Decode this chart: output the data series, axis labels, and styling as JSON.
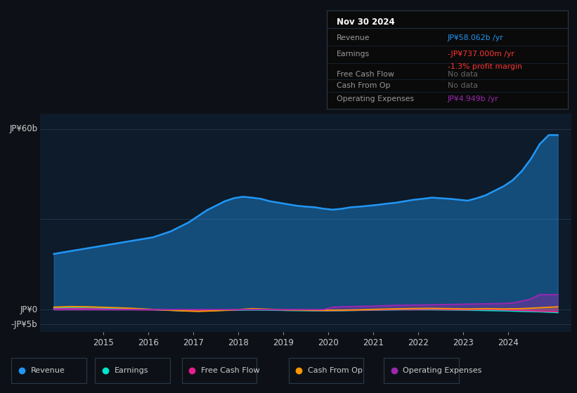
{
  "bg_color": "#0d1117",
  "plot_bg_color": "#0d1b2a",
  "grid_color": "#253a52",
  "text_color": "#cccccc",
  "title_color": "#ffffff",
  "xlim_start": 2013.6,
  "xlim_end": 2025.4,
  "ylim_min": -7500000000,
  "ylim_max": 65000000000,
  "x_ticks": [
    2015,
    2016,
    2017,
    2018,
    2019,
    2020,
    2021,
    2022,
    2023,
    2024
  ],
  "revenue_color": "#2196f3",
  "earnings_color": "#00e5cc",
  "fcf_color": "#e91e8c",
  "cashfromop_color": "#ff9800",
  "opex_color": "#9c27b0",
  "revenue_x": [
    2013.9,
    2014.1,
    2014.3,
    2014.5,
    2014.7,
    2014.9,
    2015.1,
    2015.3,
    2015.5,
    2015.7,
    2015.9,
    2016.1,
    2016.3,
    2016.5,
    2016.7,
    2016.9,
    2017.1,
    2017.3,
    2017.5,
    2017.7,
    2017.9,
    2018.1,
    2018.3,
    2018.5,
    2018.7,
    2018.9,
    2019.1,
    2019.3,
    2019.5,
    2019.7,
    2019.9,
    2020.1,
    2020.3,
    2020.5,
    2020.7,
    2020.9,
    2021.1,
    2021.3,
    2021.5,
    2021.7,
    2021.9,
    2022.1,
    2022.3,
    2022.5,
    2022.7,
    2022.9,
    2023.1,
    2023.3,
    2023.5,
    2023.7,
    2023.9,
    2024.1,
    2024.3,
    2024.5,
    2024.7,
    2024.9,
    2025.1
  ],
  "revenue_y": [
    18500000000.0,
    19000000000.0,
    19500000000.0,
    20000000000.0,
    20500000000.0,
    21000000000.0,
    21500000000.0,
    22000000000.0,
    22500000000.0,
    23000000000.0,
    23500000000.0,
    24000000000.0,
    25000000000.0,
    26000000000.0,
    27500000000.0,
    29000000000.0,
    31000000000.0,
    33000000000.0,
    34500000000.0,
    36000000000.0,
    37000000000.0,
    37500000000.0,
    37200000000.0,
    36800000000.0,
    36000000000.0,
    35500000000.0,
    35000000000.0,
    34500000000.0,
    34200000000.0,
    34000000000.0,
    33500000000.0,
    33200000000.0,
    33500000000.0,
    34000000000.0,
    34200000000.0,
    34500000000.0,
    34800000000.0,
    35200000000.0,
    35500000000.0,
    36000000000.0,
    36500000000.0,
    36800000000.0,
    37200000000.0,
    37000000000.0,
    36800000000.0,
    36500000000.0,
    36200000000.0,
    37000000000.0,
    38000000000.0,
    39500000000.0,
    41000000000.0,
    43000000000.0,
    46000000000.0,
    50000000000.0,
    55000000000.0,
    58000000000.0,
    58000000000.0
  ],
  "earnings_x": [
    2013.9,
    2014.3,
    2014.7,
    2015.1,
    2015.5,
    2015.9,
    2016.3,
    2016.7,
    2017.1,
    2017.5,
    2017.9,
    2018.3,
    2018.7,
    2019.1,
    2019.5,
    2019.9,
    2020.3,
    2020.7,
    2021.1,
    2021.5,
    2021.9,
    2022.3,
    2022.7,
    2023.1,
    2023.5,
    2023.9,
    2024.3,
    2024.7,
    2025.1
  ],
  "earnings_y": [
    400000000.0,
    500000000.0,
    400000000.0,
    300000000.0,
    200000000.0,
    100000000.0,
    -150000000.0,
    -350000000.0,
    -500000000.0,
    -300000000.0,
    -200000000.0,
    -100000000.0,
    -150000000.0,
    -300000000.0,
    -350000000.0,
    -400000000.0,
    -350000000.0,
    -250000000.0,
    -150000000.0,
    -50000000.0,
    50000000.0,
    0.0,
    -100000000.0,
    -200000000.0,
    -300000000.0,
    -400000000.0,
    -600000000.0,
    -730000000.0,
    -1000000000.0
  ],
  "fcf_x": [
    2013.9,
    2014.3,
    2014.7,
    2015.1,
    2015.5,
    2015.9,
    2016.3,
    2016.7,
    2017.1,
    2017.5,
    2017.9,
    2018.3,
    2018.7,
    2019.1,
    2019.5,
    2019.9,
    2020.3,
    2020.7,
    2021.1,
    2021.5,
    2021.9,
    2022.3,
    2022.7,
    2023.1,
    2023.5,
    2023.9,
    2024.3,
    2024.7,
    2025.1
  ],
  "fcf_y": [
    200000000.0,
    300000000.0,
    250000000.0,
    100000000.0,
    50000000.0,
    -50000000.0,
    -100000000.0,
    -200000000.0,
    -400000000.0,
    -200000000.0,
    -150000000.0,
    100000000.0,
    -50000000.0,
    -150000000.0,
    -250000000.0,
    -350000000.0,
    -300000000.0,
    -200000000.0,
    -100000000.0,
    50000000.0,
    100000000.0,
    150000000.0,
    0.0,
    -50000000.0,
    50000000.0,
    -100000000.0,
    -300000000.0,
    -550000000.0,
    -700000000.0
  ],
  "cashfromop_x": [
    2013.9,
    2014.3,
    2014.7,
    2015.1,
    2015.5,
    2015.9,
    2016.3,
    2016.7,
    2017.1,
    2017.5,
    2017.9,
    2018.3,
    2018.7,
    2019.1,
    2019.5,
    2019.9,
    2020.3,
    2020.7,
    2021.1,
    2021.5,
    2021.9,
    2022.3,
    2022.7,
    2023.1,
    2023.5,
    2023.9,
    2024.3,
    2024.7,
    2025.1
  ],
  "cashfromop_y": [
    800000000.0,
    1000000000.0,
    900000000.0,
    700000000.0,
    500000000.0,
    200000000.0,
    -100000000.0,
    -400000000.0,
    -600000000.0,
    -400000000.0,
    -100000000.0,
    300000000.0,
    100000000.0,
    -100000000.0,
    -200000000.0,
    -250000000.0,
    -200000000.0,
    -100000000.0,
    100000000.0,
    250000000.0,
    350000000.0,
    400000000.0,
    300000000.0,
    200000000.0,
    300000000.0,
    200000000.0,
    300000000.0,
    600000000.0,
    900000000.0
  ],
  "opex_x": [
    2013.9,
    2014.3,
    2014.7,
    2015.1,
    2015.5,
    2015.9,
    2016.3,
    2016.7,
    2017.1,
    2017.5,
    2017.9,
    2018.3,
    2018.7,
    2019.1,
    2019.5,
    2019.9,
    2020.1,
    2020.5,
    2020.9,
    2021.1,
    2021.5,
    2021.9,
    2022.3,
    2022.7,
    2023.1,
    2023.5,
    2023.9,
    2024.1,
    2024.3,
    2024.5,
    2024.7,
    2024.9,
    2025.1
  ],
  "opex_y": [
    0.0,
    0.0,
    0.0,
    0.0,
    0.0,
    0.0,
    0.0,
    0.0,
    0.0,
    0.0,
    0.0,
    0.0,
    0.0,
    0.0,
    0.0,
    0.0,
    800000000.0,
    1000000000.0,
    1100000000.0,
    1200000000.0,
    1400000000.0,
    1500000000.0,
    1600000000.0,
    1700000000.0,
    1800000000.0,
    1900000000.0,
    2000000000.0,
    2200000000.0,
    2800000000.0,
    3500000000.0,
    5000000000.0,
    4949000000.0,
    4949000000.0
  ],
  "tooltip_title": "Nov 30 2024",
  "tooltip_revenue_label": "Revenue",
  "tooltip_revenue_value": "JP¥58.062b /yr",
  "tooltip_revenue_value_color": "#2196f3",
  "tooltip_earnings_label": "Earnings",
  "tooltip_earnings_value": "-JP¥737.000m /yr",
  "tooltip_earnings_value_color": "#ff3333",
  "tooltip_earnings_pct": "-1.3% profit margin",
  "tooltip_earnings_pct_color": "#ff3333",
  "tooltip_fcf_label": "Free Cash Flow",
  "tooltip_fcf_value": "No data",
  "tooltip_cashfromop_label": "Cash From Op",
  "tooltip_cashfromop_value": "No data",
  "tooltip_opex_label": "Operating Expenses",
  "tooltip_opex_value": "JP¥4.949b /yr",
  "tooltip_opex_value_color": "#9c27b0",
  "legend_items": [
    "Revenue",
    "Earnings",
    "Free Cash Flow",
    "Cash From Op",
    "Operating Expenses"
  ],
  "legend_colors": [
    "#2196f3",
    "#00e5cc",
    "#e91e8c",
    "#ff9800",
    "#9c27b0"
  ]
}
